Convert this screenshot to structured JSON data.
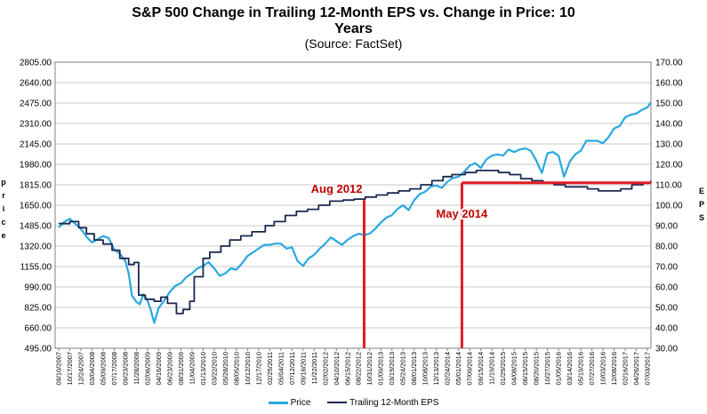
{
  "chart_data": {
    "type": "line",
    "title_line1": "S&P 500 Change in Trailing 12-Month EPS vs. Change in Price: 10",
    "title_line2": "Years",
    "subtitle": "(Source: FactSet)",
    "ylabel_left": "Price",
    "ylabel_right": "EPS",
    "ylim_left": [
      495,
      2805
    ],
    "ylim_right": [
      30,
      170
    ],
    "yticks_left": [
      "2805.00",
      "2640.00",
      "2475.00",
      "2310.00",
      "2145.00",
      "1980.00",
      "1815.00",
      "1650.00",
      "1485.00",
      "1320.00",
      "1155.00",
      "990.00",
      "825.00",
      "660.00",
      "495.00"
    ],
    "yticks_right": [
      "170.00",
      "160.00",
      "150.00",
      "140.00",
      "130.00",
      "120.00",
      "110.00",
      "100.00",
      "90.00",
      "80.00",
      "70.00",
      "60.00",
      "50.00",
      "40.00",
      "30.00"
    ],
    "xticks": [
      "09/10/2007",
      "10/17/2007",
      "12/24/2007",
      "03/04/2008",
      "05/09/2008",
      "07/17/2008",
      "09/23/2008",
      "11/28/2008",
      "02/06/2009",
      "04/16/2009",
      "06/23/2009",
      "08/31/2009",
      "11/04/2009",
      "01/13/2010",
      "03/22/2010",
      "05/28/2010",
      "08/05/2010",
      "10/12/2010",
      "12/17/2010",
      "02/25/2011",
      "05/04/2011",
      "07/12/2011",
      "09/16/2011",
      "11/22/2011",
      "02/02/2012",
      "04/10/2012",
      "06/15/2012",
      "08/22/2012",
      "10/31/2012",
      "01/09/2013",
      "03/19/2013",
      "05/24/2013",
      "08/01/2013",
      "10/08/2013",
      "12/13/2013",
      "02/24/2014",
      "05/01/2014",
      "07/09/2014",
      "09/15/2014",
      "11/19/2014",
      "01/29/2015",
      "04/08/2015",
      "06/15/2015",
      "08/20/2015",
      "10/27/2015",
      "01/05/2016",
      "03/14/2016",
      "05/19/2016",
      "07/27/2016",
      "10/03/2016",
      "12/08/2016",
      "02/16/2017",
      "04/26/2017",
      "07/03/2017"
    ],
    "legend_position": "bottom",
    "series": [
      {
        "name": "Price",
        "axis": "left",
        "color": "#29a8e0",
        "points": [
          [
            0,
            1470
          ],
          [
            0.5,
            1515
          ],
          [
            1,
            1540
          ],
          [
            1.5,
            1500
          ],
          [
            2,
            1460
          ],
          [
            2.5,
            1395
          ],
          [
            3,
            1350
          ],
          [
            3.5,
            1375
          ],
          [
            4,
            1400
          ],
          [
            4.5,
            1385
          ],
          [
            5,
            1290
          ],
          [
            5.5,
            1260
          ],
          [
            6,
            1200
          ],
          [
            6.3,
            1100
          ],
          [
            6.6,
            920
          ],
          [
            7,
            870
          ],
          [
            7.3,
            850
          ],
          [
            7.6,
            930
          ],
          [
            8,
            880
          ],
          [
            8.3,
            800
          ],
          [
            8.6,
            700
          ],
          [
            9,
            820
          ],
          [
            9.5,
            880
          ],
          [
            10,
            950
          ],
          [
            10.5,
            1000
          ],
          [
            11,
            1020
          ],
          [
            11.5,
            1070
          ],
          [
            12,
            1100
          ],
          [
            12.5,
            1140
          ],
          [
            13,
            1160
          ],
          [
            13.5,
            1190
          ],
          [
            14,
            1140
          ],
          [
            14.5,
            1080
          ],
          [
            15,
            1100
          ],
          [
            15.5,
            1140
          ],
          [
            16,
            1130
          ],
          [
            16.5,
            1180
          ],
          [
            17,
            1240
          ],
          [
            17.5,
            1270
          ],
          [
            18,
            1300
          ],
          [
            18.5,
            1330
          ],
          [
            19,
            1330
          ],
          [
            19.5,
            1340
          ],
          [
            20,
            1340
          ],
          [
            20.5,
            1300
          ],
          [
            21,
            1310
          ],
          [
            21.5,
            1200
          ],
          [
            22,
            1160
          ],
          [
            22.5,
            1220
          ],
          [
            23,
            1250
          ],
          [
            23.5,
            1300
          ],
          [
            24,
            1340
          ],
          [
            24.5,
            1390
          ],
          [
            25,
            1360
          ],
          [
            25.5,
            1330
          ],
          [
            26,
            1370
          ],
          [
            26.5,
            1400
          ],
          [
            27,
            1420
          ],
          [
            27.5,
            1410
          ],
          [
            28,
            1420
          ],
          [
            28.5,
            1460
          ],
          [
            29,
            1510
          ],
          [
            29.5,
            1550
          ],
          [
            30,
            1570
          ],
          [
            30.5,
            1620
          ],
          [
            31,
            1650
          ],
          [
            31.5,
            1610
          ],
          [
            32,
            1690
          ],
          [
            32.5,
            1740
          ],
          [
            33,
            1760
          ],
          [
            33.5,
            1800
          ],
          [
            34,
            1810
          ],
          [
            34.5,
            1790
          ],
          [
            35,
            1840
          ],
          [
            35.5,
            1870
          ],
          [
            36,
            1880
          ],
          [
            36.5,
            1920
          ],
          [
            37,
            1970
          ],
          [
            37.5,
            1990
          ],
          [
            38,
            1950
          ],
          [
            38.5,
            2020
          ],
          [
            39,
            2050
          ],
          [
            39.5,
            2060
          ],
          [
            40,
            2050
          ],
          [
            40.5,
            2100
          ],
          [
            41,
            2080
          ],
          [
            41.5,
            2100
          ],
          [
            42,
            2110
          ],
          [
            42.5,
            2090
          ],
          [
            43,
            2010
          ],
          [
            43.5,
            1910
          ],
          [
            44,
            2070
          ],
          [
            44.5,
            2080
          ],
          [
            45,
            2050
          ],
          [
            45.5,
            1880
          ],
          [
            46,
            2000
          ],
          [
            46.5,
            2060
          ],
          [
            47,
            2090
          ],
          [
            47.5,
            2170
          ],
          [
            48,
            2170
          ],
          [
            48.5,
            2170
          ],
          [
            49,
            2150
          ],
          [
            49.5,
            2200
          ],
          [
            50,
            2270
          ],
          [
            50.5,
            2290
          ],
          [
            51,
            2360
          ],
          [
            51.5,
            2380
          ],
          [
            52,
            2390
          ],
          [
            52.5,
            2420
          ],
          [
            53,
            2440
          ],
          [
            53.3,
            2480
          ]
        ]
      },
      {
        "name": "Trailing 12-Month EPS",
        "axis": "right",
        "color": "#1b2750",
        "points": [
          [
            0,
            91
          ],
          [
            1,
            92
          ],
          [
            1.8,
            89
          ],
          [
            2.5,
            86
          ],
          [
            3.2,
            83
          ],
          [
            4,
            81
          ],
          [
            4.8,
            78
          ],
          [
            5.5,
            74
          ],
          [
            6.3,
            71
          ],
          [
            6.8,
            72
          ],
          [
            7.2,
            56
          ],
          [
            7.8,
            54
          ],
          [
            8.6,
            53
          ],
          [
            9.2,
            55
          ],
          [
            9.8,
            52
          ],
          [
            10.6,
            47
          ],
          [
            11.2,
            49
          ],
          [
            11.8,
            53
          ],
          [
            12.2,
            65
          ],
          [
            13,
            74
          ],
          [
            13.6,
            77
          ],
          [
            14.6,
            80
          ],
          [
            15.4,
            83
          ],
          [
            16.4,
            85
          ],
          [
            17.4,
            87
          ],
          [
            18.6,
            90
          ],
          [
            19.4,
            92
          ],
          [
            20.4,
            95
          ],
          [
            21.4,
            97
          ],
          [
            22.4,
            98
          ],
          [
            23.4,
            100
          ],
          [
            24.4,
            102
          ],
          [
            25.6,
            102.5
          ],
          [
            26.6,
            103
          ],
          [
            27.6,
            104
          ],
          [
            28.6,
            105
          ],
          [
            29.6,
            106
          ],
          [
            30.6,
            107
          ],
          [
            31.6,
            108
          ],
          [
            32.6,
            110
          ],
          [
            33.6,
            112
          ],
          [
            34.6,
            114
          ],
          [
            35.4,
            115
          ],
          [
            36.6,
            116
          ],
          [
            37.6,
            117
          ],
          [
            38.6,
            117
          ],
          [
            39.6,
            116
          ],
          [
            40.6,
            115
          ],
          [
            41.6,
            113
          ],
          [
            42.6,
            112
          ],
          [
            43.6,
            111
          ],
          [
            44.6,
            110
          ],
          [
            45.6,
            109
          ],
          [
            46.6,
            109
          ],
          [
            47.6,
            108
          ],
          [
            48.6,
            107
          ],
          [
            49.6,
            107
          ],
          [
            50.6,
            108
          ],
          [
            51.6,
            110
          ],
          [
            52.6,
            111
          ],
          [
            53.3,
            112
          ]
        ]
      }
    ],
    "annotations": [
      {
        "label": "Aug 2012",
        "x": 27.5
      },
      {
        "label": "May 2014",
        "x": 36.3
      }
    ],
    "reference_line_eps": 111,
    "reference_color": "#e01c24"
  }
}
